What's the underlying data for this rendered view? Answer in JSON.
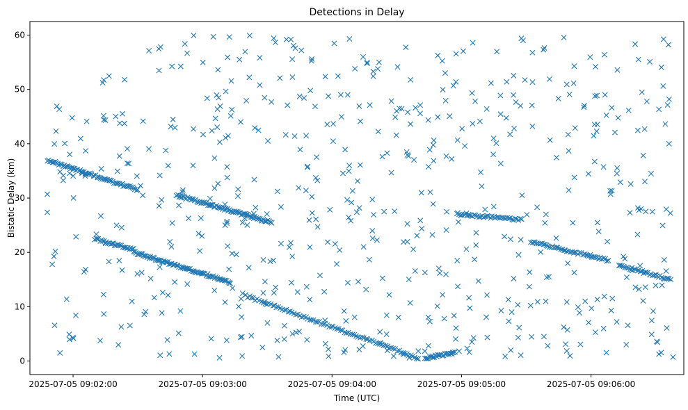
{
  "chart_data": {
    "type": "scatter",
    "title": "Detections in Delay",
    "xlabel": "Time (UTC)",
    "ylabel": "Bistatic Delay (km)",
    "marker": "x",
    "color": "#1f77b4",
    "grid": false,
    "xlim": [
      "2025-07-05 09:01:40",
      "2025-07-05 09:06:43"
    ],
    "ylim": [
      -2.5,
      62.5
    ],
    "x_ticks": [
      "2025-07-05 09:02:00",
      "2025-07-05 09:03:00",
      "2025-07-05 09:04:00",
      "2025-07-05 09:05:00",
      "2025-07-05 09:06:00"
    ],
    "y_ticks": [
      0,
      10,
      20,
      30,
      40,
      50,
      60
    ],
    "tracks": [
      {
        "x": [
          "2025-07-05 09:01:48",
          "2025-07-05 09:02:30"
        ],
        "y": [
          37.0,
          31.5
        ],
        "count": 70
      },
      {
        "x": [
          "2025-07-05 09:02:48",
          "2025-07-05 09:03:32"
        ],
        "y": [
          30.5,
          25.5
        ],
        "count": 80
      },
      {
        "x": [
          "2025-07-05 09:02:10",
          "2025-07-05 09:02:28"
        ],
        "y": [
          22.5,
          20.5
        ],
        "count": 30
      },
      {
        "x": [
          "2025-07-05 09:02:28",
          "2025-07-05 09:03:13"
        ],
        "y": [
          20.0,
          14.5
        ],
        "count": 80
      },
      {
        "x": [
          "2025-07-05 09:03:20",
          "2025-07-05 09:04:40"
        ],
        "y": [
          12.0,
          0.5
        ],
        "count": 90
      },
      {
        "x": [
          "2025-07-05 09:04:43",
          "2025-07-05 09:04:56"
        ],
        "y": [
          0.5,
          1.5
        ],
        "count": 25
      },
      {
        "x": [
          "2025-07-05 09:04:58",
          "2025-07-05 09:05:28"
        ],
        "y": [
          27.0,
          26.0
        ],
        "count": 40
      },
      {
        "x": [
          "2025-07-05 09:05:32",
          "2025-07-05 09:06:08"
        ],
        "y": [
          22.0,
          18.5
        ],
        "count": 50
      },
      {
        "x": [
          "2025-07-05 09:06:13",
          "2025-07-05 09:06:37"
        ],
        "y": [
          17.5,
          15.0
        ],
        "count": 35
      }
    ],
    "clutter": {
      "x_range": [
        "2025-07-05 09:01:48",
        "2025-07-05 09:06:38"
      ],
      "y_range": [
        0.5,
        60
      ],
      "count": 620
    }
  }
}
